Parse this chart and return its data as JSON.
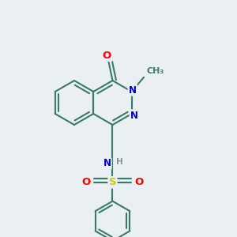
{
  "bg_color": "#eaeff2",
  "bond_color": "#3a7a6a",
  "bond_width": 1.5,
  "atom_colors": {
    "O": "#ff0000",
    "N": "#0000cc",
    "S": "#cccc00",
    "H": "#7a9a9a",
    "C": "#3a7a6a"
  },
  "font_size": 8.5,
  "title": ""
}
